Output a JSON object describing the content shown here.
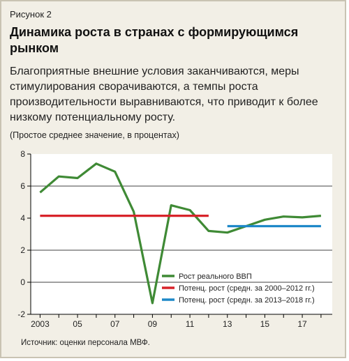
{
  "figure_label": "Рисунок 2",
  "title": "Динамика роста в странах с формирующимся рынком",
  "subtitle": "Благоприятные внешние условия заканчиваются, меры стимулирования сворачиваются, а темпы роста производительности выравниваются, что приводит к более низкому потенциальному росту.",
  "units_note": "(Простое среднее значение, в процентах)",
  "source": "Источник: оценки персонала МВФ.",
  "colors": {
    "panel_background": "#f2efe6",
    "gdp_line": "#3f8a35",
    "potential_2000_2012": "#d8232a",
    "potential_2013_2018": "#1e88c8"
  },
  "chart_data": {
    "type": "line",
    "x": [
      2003,
      2004,
      2005,
      2006,
      2007,
      2008,
      2009,
      2010,
      2011,
      2012,
      2013,
      2014,
      2015,
      2016,
      2017,
      2018
    ],
    "xlim": [
      2002.5,
      2018.6
    ],
    "ylim": [
      -2,
      8
    ],
    "x_ticks": [
      2003,
      2005,
      2007,
      2009,
      2011,
      2013,
      2015,
      2017
    ],
    "x_tick_labels": [
      "2003",
      "05",
      "07",
      "09",
      "11",
      "13",
      "15",
      "17"
    ],
    "y_ticks": [
      -2,
      0,
      2,
      4,
      6,
      8
    ],
    "y_tick_labels": [
      "-2",
      "0",
      "2",
      "4",
      "6",
      "8"
    ],
    "gridlines": [
      0,
      2,
      6
    ],
    "legend_position": "bottom-right",
    "series": [
      {
        "name": "Рост реального ВВП",
        "x": [
          2003,
          2004,
          2005,
          2006,
          2007,
          2008,
          2009,
          2010,
          2011,
          2012,
          2013,
          2014,
          2015,
          2016,
          2017,
          2018
        ],
        "values": [
          5.6,
          6.6,
          6.5,
          7.4,
          6.9,
          4.4,
          -1.3,
          4.8,
          4.5,
          3.2,
          3.1,
          3.5,
          3.9,
          4.1,
          4.05,
          4.15
        ]
      },
      {
        "name": "Потенц. рост (средн. за 2000–2012 гг.)",
        "x": [
          2003,
          2012
        ],
        "values": [
          4.15,
          4.15
        ]
      },
      {
        "name": "Потенц. рост (средн. за 2013–2018 гг.)",
        "x": [
          2013,
          2018
        ],
        "values": [
          3.5,
          3.5
        ]
      }
    ]
  }
}
